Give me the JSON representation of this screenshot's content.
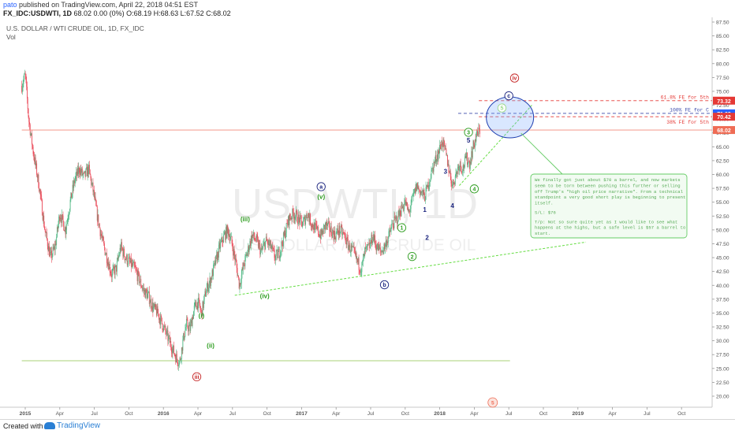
{
  "header": {
    "user": "pato",
    "published_text": "published on TradingView.com, April 22, 2018 04:51 EST",
    "symbol_line": "FX_IDC:USDWTI, 1D",
    "ohlc_line": "68.02 0.00 (0%) O:68.19 H:68.63 L:67.52 C:68.02"
  },
  "footer": {
    "created_with": "Created with",
    "brand": "TradingView"
  },
  "chart_data": {
    "type": "line",
    "style": "candlestick-ohlc",
    "title": "U.S. DOLLAR / WTI CRUDE OIL, 1D, FX_IDC",
    "indicator_label": "Vol",
    "watermark_symbol": "USDWTI, 1D",
    "watermark_name": "U.S. DOLLAR / WTI CRUDE OIL",
    "ylim": [
      19,
      88
    ],
    "y_ticks": [
      "87.50",
      "85.00",
      "82.50",
      "80.00",
      "77.50",
      "75.00",
      "72.50",
      "70.00",
      "67.50",
      "65.00",
      "62.50",
      "60.00",
      "57.50",
      "55.00",
      "52.50",
      "50.00",
      "47.50",
      "45.00",
      "42.50",
      "40.00",
      "37.50",
      "35.00",
      "32.50",
      "30.00",
      "27.50",
      "25.00",
      "22.50",
      "20.00"
    ],
    "x_ticks": [
      {
        "label": "2015",
        "t": 0.3
      },
      {
        "label": "Apr",
        "t": 3.3
      },
      {
        "label": "Jul",
        "t": 6.3
      },
      {
        "label": "Oct",
        "t": 9.3
      },
      {
        "label": "2016",
        "t": 12.3
      },
      {
        "label": "Apr",
        "t": 15.3
      },
      {
        "label": "Jul",
        "t": 18.3
      },
      {
        "label": "Oct",
        "t": 21.3
      },
      {
        "label": "2017",
        "t": 24.3
      },
      {
        "label": "Apr",
        "t": 27.3
      },
      {
        "label": "Jul",
        "t": 30.3
      },
      {
        "label": "Oct",
        "t": 33.3
      },
      {
        "label": "2018",
        "t": 36.3
      },
      {
        "label": "Apr",
        "t": 39.3
      },
      {
        "label": "Jul",
        "t": 42.3
      },
      {
        "label": "Oct",
        "t": 45.3
      },
      {
        "label": "2019",
        "t": 48.3
      },
      {
        "label": "Apr",
        "t": 51.3
      },
      {
        "label": "Jul",
        "t": 54.3
      },
      {
        "label": "Oct",
        "t": 57.3
      }
    ],
    "price_path": [
      [
        0,
        76
      ],
      [
        0.3,
        78
      ],
      [
        0.6,
        70
      ],
      [
        1.0,
        64
      ],
      [
        1.5,
        58
      ],
      [
        2.0,
        50
      ],
      [
        2.5,
        45
      ],
      [
        2.9,
        47
      ],
      [
        3.3,
        53
      ],
      [
        3.8,
        50
      ],
      [
        4.2,
        55
      ],
      [
        4.6,
        59
      ],
      [
        5.0,
        61
      ],
      [
        5.4,
        59.5
      ],
      [
        5.8,
        61
      ],
      [
        6.2,
        57
      ],
      [
        6.6,
        52
      ],
      [
        7.0,
        48
      ],
      [
        7.4,
        45
      ],
      [
        7.8,
        42
      ],
      [
        8.2,
        43
      ],
      [
        8.6,
        47
      ],
      [
        9.0,
        45
      ],
      [
        9.4,
        44
      ],
      [
        9.8,
        43
      ],
      [
        10.2,
        41
      ],
      [
        10.6,
        39
      ],
      [
        11.0,
        38
      ],
      [
        11.4,
        36
      ],
      [
        11.8,
        35
      ],
      [
        12.2,
        33
      ],
      [
        12.6,
        31
      ],
      [
        13.0,
        29
      ],
      [
        13.4,
        27
      ],
      [
        13.7,
        26
      ],
      [
        14.0,
        30
      ],
      [
        14.3,
        33
      ],
      [
        14.6,
        32
      ],
      [
        15.0,
        36
      ],
      [
        15.3,
        37
      ],
      [
        15.6,
        35
      ],
      [
        16.0,
        39
      ],
      [
        16.4,
        41
      ],
      [
        16.8,
        44
      ],
      [
        17.2,
        47
      ],
      [
        17.6,
        49
      ],
      [
        17.9,
        50
      ],
      [
        18.2,
        48
      ],
      [
        18.6,
        44
      ],
      [
        18.9,
        40
      ],
      [
        19.2,
        43
      ],
      [
        19.6,
        46
      ],
      [
        20.0,
        49
      ],
      [
        20.4,
        48
      ],
      [
        20.8,
        46
      ],
      [
        21.2,
        48
      ],
      [
        21.6,
        47
      ],
      [
        22.0,
        45
      ],
      [
        22.4,
        46
      ],
      [
        22.8,
        49
      ],
      [
        23.2,
        52
      ],
      [
        23.6,
        53
      ],
      [
        24.0,
        52
      ],
      [
        24.4,
        51
      ],
      [
        24.8,
        53
      ],
      [
        25.2,
        51
      ],
      [
        25.6,
        50
      ],
      [
        26.0,
        49
      ],
      [
        26.4,
        51
      ],
      [
        26.8,
        50
      ],
      [
        27.2,
        49
      ],
      [
        27.6,
        50
      ],
      [
        28.0,
        49
      ],
      [
        28.4,
        47
      ],
      [
        28.8,
        46
      ],
      [
        29.2,
        44
      ],
      [
        29.5,
        43
      ],
      [
        29.8,
        46
      ],
      [
        30.2,
        47
      ],
      [
        30.5,
        49
      ],
      [
        30.8,
        47
      ],
      [
        31.2,
        46
      ],
      [
        31.5,
        47
      ],
      [
        31.9,
        49
      ],
      [
        32.2,
        51
      ],
      [
        32.6,
        52
      ],
      [
        33.0,
        54
      ],
      [
        33.3,
        55
      ],
      [
        33.6,
        53
      ],
      [
        34.0,
        56
      ],
      [
        34.3,
        58
      ],
      [
        34.6,
        57
      ],
      [
        35.0,
        56
      ],
      [
        35.4,
        59
      ],
      [
        35.8,
        62
      ],
      [
        36.2,
        64
      ],
      [
        36.5,
        66
      ],
      [
        36.8,
        64
      ],
      [
        37.1,
        61
      ],
      [
        37.4,
        58
      ],
      [
        37.7,
        60
      ],
      [
        38.0,
        62
      ],
      [
        38.3,
        61
      ],
      [
        38.6,
        63
      ],
      [
        38.9,
        62
      ],
      [
        39.2,
        65
      ],
      [
        39.5,
        67
      ],
      [
        39.8,
        68.02
      ]
    ],
    "drawn_lines": [
      {
        "name": "Fib 61.8% EE for 5th",
        "price": 73.32,
        "color": "#e53935",
        "style": "dashed",
        "from_t": 39.7,
        "label": "61.8% FE for 5th"
      },
      {
        "name": "100% FE for C",
        "price": 71.03,
        "color": "#3949ab",
        "style": "dashed",
        "from_t": 37.9,
        "label": "100% FE for C"
      },
      {
        "name": "38% FE for 5th",
        "price": 70.42,
        "color": "#e53935",
        "style": "dashed",
        "from_t": 39.7,
        "label": "38% FE for 5th"
      },
      {
        "name": "last price line",
        "price": 68.02,
        "color": "#f08a7a",
        "style": "solid",
        "from_t": 0
      }
    ],
    "price_badges": [
      {
        "value": "73.32",
        "price": 73.32,
        "color": "#e53935"
      },
      {
        "value": "71.03",
        "price": 71.03,
        "color": "#2962ff"
      },
      {
        "value": "70.42",
        "price": 70.42,
        "color": "#e53935"
      },
      {
        "value": "68.02",
        "price": 68.02,
        "color": "#ef6c55"
      }
    ],
    "support_line": {
      "price": 26.4,
      "from_t": 0,
      "to_t": 42.4,
      "color": "#8bc34a"
    },
    "trendlines": [
      {
        "from": [
          18.5,
          38.2
        ],
        "to": [
          49.0,
          47.8
        ],
        "color": "#66dd44"
      },
      {
        "from": [
          38.0,
          58.0
        ],
        "to": [
          44.3,
          72.5
        ],
        "color": "#66dd44"
      }
    ],
    "wave_labels": [
      {
        "text": "(iii)",
        "t": 19.4,
        "p": 52,
        "color": "#2e9d20",
        "style": "plain"
      },
      {
        "text": "(iv)",
        "t": 21.1,
        "p": 38.1,
        "color": "#2e9d20",
        "style": "plain"
      },
      {
        "text": "(v)",
        "t": 26.0,
        "p": 56.0,
        "color": "#2e9d20",
        "style": "plain"
      },
      {
        "text": "a",
        "t": 26.0,
        "p": 57.8,
        "color": "#1a237e",
        "style": "circle-blue"
      },
      {
        "text": "b",
        "t": 31.5,
        "p": 40.1,
        "color": "#1a237e",
        "style": "circle-blue"
      },
      {
        "text": "(i)",
        "t": 15.6,
        "p": 34.6,
        "color": "#2e9d20",
        "style": "plain"
      },
      {
        "text": "(ii)",
        "t": 16.4,
        "p": 29.2,
        "color": "#2e9d20",
        "style": "plain"
      },
      {
        "text": "iii",
        "t": 15.2,
        "p": 23.5,
        "color": "#c62828",
        "style": "circle-red"
      },
      {
        "text": "1",
        "t": 33.0,
        "p": 50.4,
        "color": "#2e9d20",
        "style": "circle-green"
      },
      {
        "text": "2",
        "t": 33.9,
        "p": 45.2,
        "color": "#2e9d20",
        "style": "circle-green"
      },
      {
        "text": "1",
        "t": 35.0,
        "p": 53.7,
        "color": "#1a237e",
        "style": "plain"
      },
      {
        "text": "2",
        "t": 35.2,
        "p": 48.6,
        "color": "#1a237e",
        "style": "plain"
      },
      {
        "text": "3",
        "t": 36.8,
        "p": 60.6,
        "color": "#1a237e",
        "style": "plain"
      },
      {
        "text": "4",
        "t": 37.4,
        "p": 54.4,
        "color": "#1a237e",
        "style": "plain"
      },
      {
        "text": "3",
        "t": 38.8,
        "p": 67.6,
        "color": "#2e9d20",
        "style": "circle-green"
      },
      {
        "text": "5",
        "t": 38.8,
        "p": 66.2,
        "color": "#1a237e",
        "style": "plain"
      },
      {
        "text": "4",
        "t": 39.3,
        "p": 57.4,
        "color": "#2e9d20",
        "style": "circle-green"
      },
      {
        "text": "5",
        "t": 41.7,
        "p": 72.0,
        "color": "#2e9d20",
        "style": "circle-green-light"
      },
      {
        "text": "c",
        "t": 42.3,
        "p": 74.2,
        "color": "#1a237e",
        "style": "circle-blue"
      },
      {
        "text": "iv",
        "t": 42.8,
        "p": 77.4,
        "color": "#c62828",
        "style": "circle-red"
      }
    ],
    "target_ellipse": {
      "center_t": 42.4,
      "center_p": 70.3,
      "color": "#1f3fb0"
    },
    "annotation": {
      "paragraph1": "We finally got just about $70 a barrel, and now markets seem to be torn between pushing this further or selling off Trump's \"high oil price narrative\". From a technical standpoint a very good short play is beginning to present itself.",
      "sl": "S/L: $76",
      "tp": "T/p: Not so sure quite yet as I would like to see what happens at the highs, but a safe level is $57 a barrel to start.",
      "border_color": "#66cc66",
      "text_color": "#55aa55"
    },
    "event_marker": {
      "text": "5",
      "t": 40.9,
      "color": "#ef6c55"
    }
  }
}
